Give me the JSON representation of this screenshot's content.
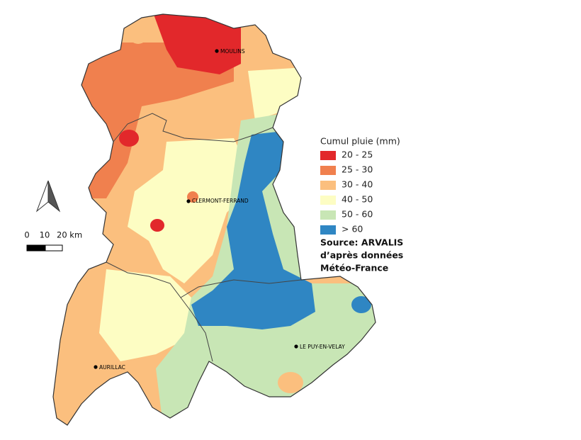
{
  "legend": {
    "title": "Cumul pluie (mm)",
    "items": [
      {
        "label": "20 - 25",
        "color": "#e2282b"
      },
      {
        "label": "25 - 30",
        "color": "#f0804e"
      },
      {
        "label": "30 - 40",
        "color": "#fbbf7e"
      },
      {
        "label": "40 - 50",
        "color": "#fdfdc3"
      },
      {
        "label": "50 - 60",
        "color": "#c8e6b5"
      },
      {
        "label": "> 60",
        "color": "#2f86c3"
      }
    ]
  },
  "source": [
    "Source: ARVALIS",
    "d’après données",
    "Météo-France"
  ],
  "cities": [
    {
      "label": "MOULINS"
    },
    {
      "label": "CLERMONT-FERRAND"
    },
    {
      "label": "AURILLAC"
    },
    {
      "label": "LE PUY-EN-VELAY"
    }
  ],
  "scale_bar": {
    "labels": [
      "0",
      "10",
      "20 km"
    ]
  }
}
